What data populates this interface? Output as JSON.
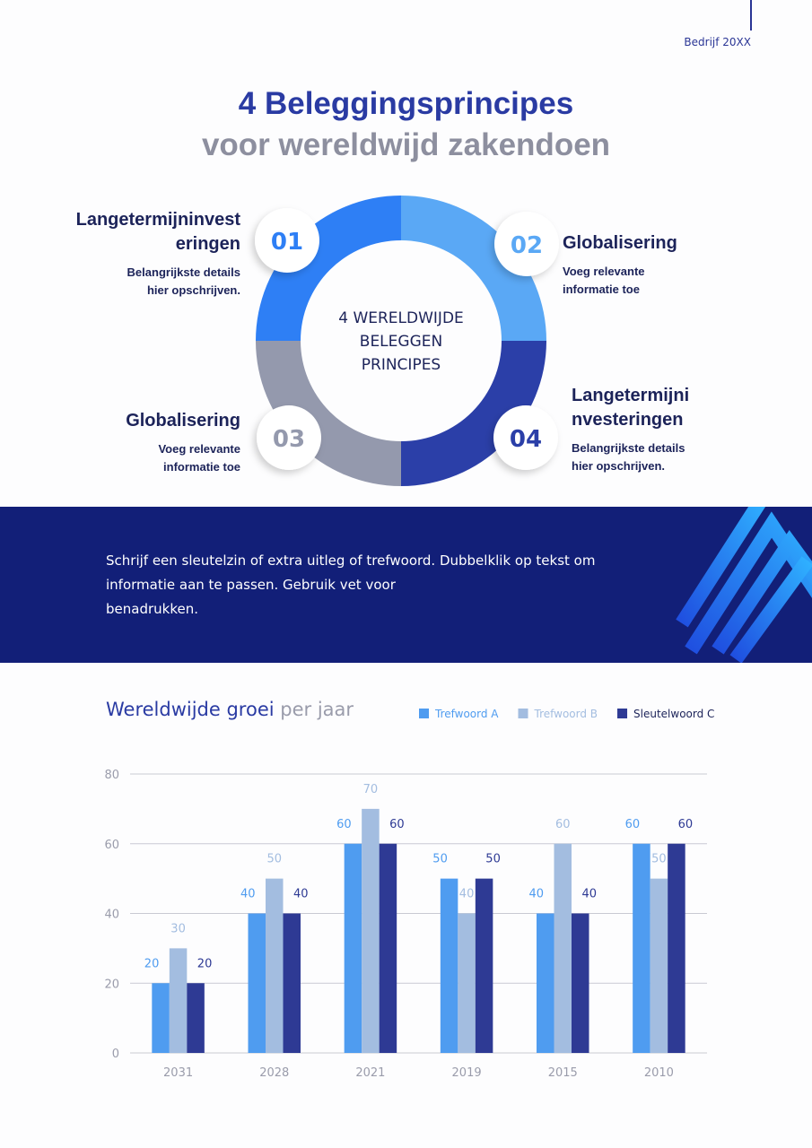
{
  "header": {
    "company": "Bedrijf 20XX"
  },
  "title": {
    "line1": "4 Beleggingsprincipes",
    "line2": "voor wereldwijd zakendoen"
  },
  "donut": {
    "center_lines": [
      "4 WERELDWIJDE",
      "BELEGGEN",
      "PRINCIPES"
    ]
  },
  "principles": [
    {
      "number": "01",
      "title_lines": [
        "Langetermijninvest",
        "eringen"
      ],
      "description_lines": [
        "Belangrijkste details",
        "hier opschrijven."
      ]
    },
    {
      "number": "02",
      "title_lines": [
        "Globalisering"
      ],
      "description_lines": [
        "Voeg relevante",
        "informatie toe"
      ]
    },
    {
      "number": "03",
      "title_lines": [
        "Globalisering"
      ],
      "description_lines": [
        "Voeg relevante",
        "informatie toe"
      ]
    },
    {
      "number": "04",
      "title_lines": [
        "Langetermijni",
        "nvesteringen"
      ],
      "description_lines": [
        "Belangrijkste details",
        "hier opschrijven."
      ]
    }
  ],
  "banner": {
    "lines": [
      "Schrijf een sleutelzin of extra uitleg of trefwoord. Dubbelklik op tekst om",
      "informatie aan te passen. Gebruik vet voor",
      "benadrukken."
    ]
  },
  "chart_data": {
    "type": "bar",
    "title_parts": [
      "Wereldwijde groei",
      "per jaar"
    ],
    "categories": [
      "2031",
      "2028",
      "2021",
      "2019",
      "2015",
      "2010"
    ],
    "series": [
      {
        "name": "Trefwoord A",
        "color": "#4f9cf0",
        "values": [
          20,
          40,
          60,
          50,
          40,
          60
        ]
      },
      {
        "name": "Trefwoord B",
        "color": "#a3bde0",
        "values": [
          30,
          50,
          70,
          40,
          60,
          50
        ]
      },
      {
        "name": "Sleutelwoord C",
        "color": "#2e3a94",
        "values": [
          20,
          40,
          60,
          50,
          40,
          60
        ]
      }
    ],
    "ylim": [
      0,
      80
    ],
    "yticks": [
      0,
      20,
      40,
      60,
      80
    ],
    "grid": true
  }
}
